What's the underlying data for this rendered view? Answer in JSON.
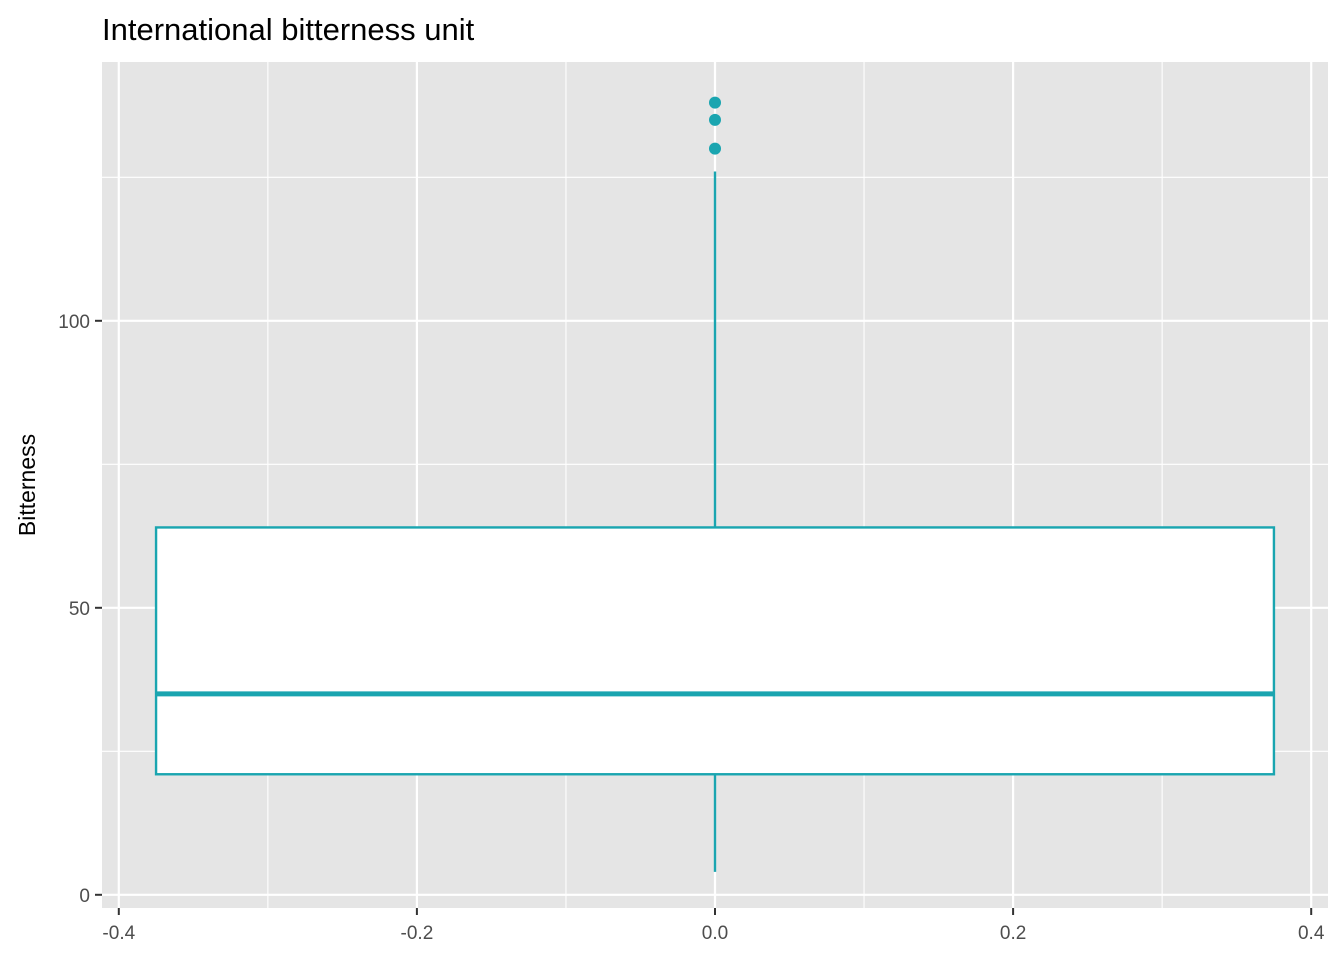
{
  "chart_data": {
    "type": "boxplot",
    "title": "International bitterness unit",
    "xlabel": "",
    "ylabel": "Bitterness",
    "xlim": [
      -0.4,
      0.4
    ],
    "ylim": [
      0,
      140
    ],
    "x_ticks": [
      -0.4,
      -0.2,
      0.0,
      0.2,
      0.4
    ],
    "x_tick_labels": [
      "-0.4",
      "-0.2",
      "0.0",
      "0.2",
      "0.4"
    ],
    "y_ticks": [
      0,
      50,
      100
    ],
    "y_tick_labels": [
      "0",
      "50",
      "100"
    ],
    "grid": true,
    "box": {
      "x_center": 0.0,
      "x_extent": [
        -0.375,
        0.375
      ],
      "whisker_low": 4,
      "q1": 21,
      "median": 35,
      "q3": 64,
      "whisker_high": 126,
      "outliers": [
        130,
        135,
        138
      ]
    },
    "colors": {
      "box_stroke": "#1aa5b0",
      "box_fill": "#ffffff",
      "panel_background": "#e5e5e5",
      "grid": "#ffffff"
    }
  }
}
